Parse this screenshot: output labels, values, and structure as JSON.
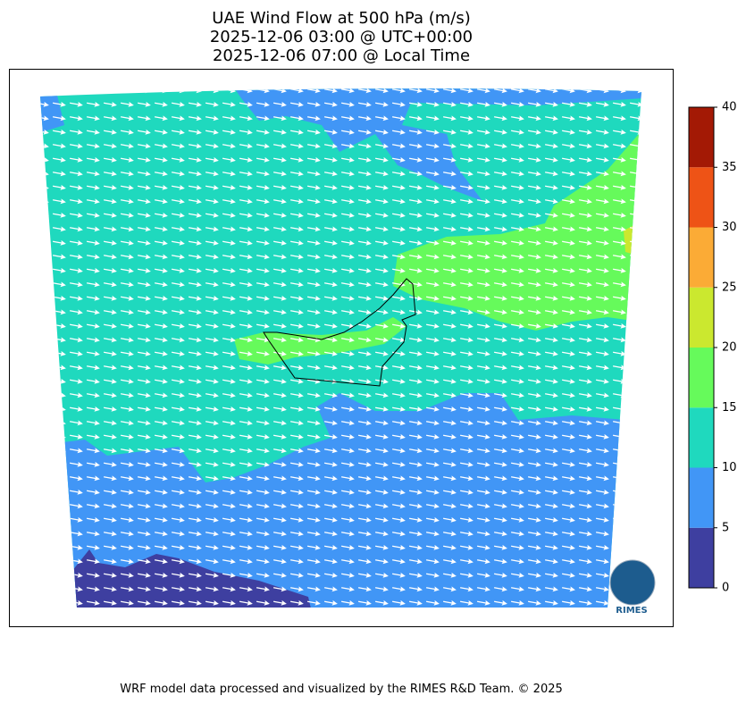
{
  "title": {
    "lines": [
      "UAE Wind Flow at 500 hPa (m/s)",
      "2025-12-06 03:00 @ UTC+00:00",
      "2025-12-06 07:00 @ Local Time"
    ]
  },
  "colorbar": {
    "lim": [
      0,
      40
    ],
    "ticks": [
      0,
      5,
      10,
      15,
      20,
      25,
      30,
      35,
      40
    ],
    "colors": [
      "#3e3fa0",
      "#4196f6",
      "#1fd9be",
      "#66fa5b",
      "#cbe82f",
      "#fbab36",
      "#ee5316",
      "#a31905"
    ]
  },
  "logo": {
    "text": "RIMES"
  },
  "footer": "WRF model data processed and visualized by the RIMES R&D Team. © 2025"
}
